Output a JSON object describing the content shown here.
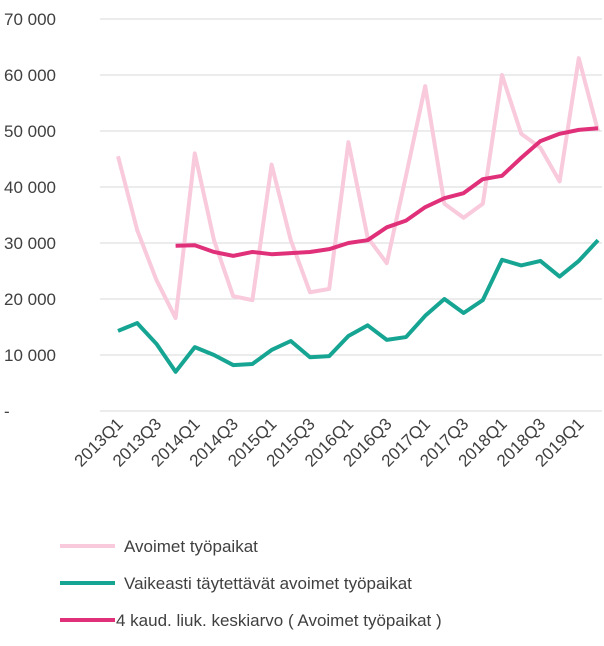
{
  "chart_data": {
    "type": "line",
    "categories": [
      "2013Q1",
      null,
      "2013Q3",
      null,
      "2014Q1",
      null,
      "2014Q3",
      null,
      "2015Q1",
      null,
      "2015Q3",
      null,
      "2016Q1",
      null,
      "2016Q3",
      null,
      "2017Q1",
      null,
      "2017Q3",
      null,
      "2018Q1",
      null,
      "2018Q3",
      null,
      "2019Q1",
      null
    ],
    "series": [
      {
        "name": "Avoimet työpaikat",
        "color": "#f8cadc",
        "values": [
          45500,
          32300,
          23400,
          16600,
          46000,
          30500,
          20500,
          19800,
          44000,
          30500,
          21200,
          21800,
          48000,
          31000,
          26400,
          42000,
          58000,
          37000,
          34500,
          37000,
          60000,
          49500,
          47000,
          41000,
          63000,
          50000
        ]
      },
      {
        "name": "Vaikeasti täytettävät avoimet työpaikat",
        "color": "#17a593",
        "values": [
          14300,
          15700,
          12000,
          7000,
          11400,
          10000,
          8200,
          8400,
          10900,
          12500,
          9600,
          9800,
          13400,
          15300,
          12700,
          13200,
          17000,
          20000,
          17500,
          19800,
          27000,
          26000,
          26800,
          24000,
          26800,
          30500
        ]
      },
      {
        "name": "4 kaud. liuk. keskiarvo ( Avoimet työpaikat )",
        "color": "#e0307a",
        "values": [
          null,
          null,
          null,
          29500,
          29600,
          28400,
          27700,
          28400,
          28000,
          28200,
          28400,
          28900,
          30000,
          30500,
          32800,
          34000,
          36400,
          38000,
          38900,
          41400,
          42000,
          45200,
          48200,
          49500,
          50200,
          50500
        ]
      }
    ],
    "ylim": [
      0,
      70000
    ],
    "yticks": [
      {
        "value": 0,
        "label": "-"
      },
      {
        "value": 10000,
        "label": "10 000"
      },
      {
        "value": 20000,
        "label": "20 000"
      },
      {
        "value": 30000,
        "label": "30 000"
      },
      {
        "value": 40000,
        "label": "40 000"
      },
      {
        "value": 50000,
        "label": "50 000"
      },
      {
        "value": 60000,
        "label": "60 000"
      },
      {
        "value": 70000,
        "label": "70 000"
      }
    ],
    "grid": true,
    "legend": "bottom"
  }
}
